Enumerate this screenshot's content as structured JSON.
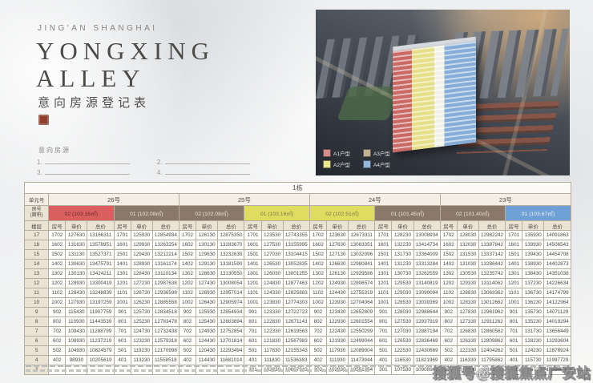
{
  "header": {
    "brand_line": "JING'AN SHANGHAI",
    "title_line1": "YONGXING",
    "title_line2": "ALLEY",
    "subtitle": "意向房源登记表",
    "intent_label": "意向房源",
    "blank_items": [
      "1.",
      "2.",
      "3.",
      "4."
    ]
  },
  "legend": {
    "items": [
      {
        "label": "A1户型",
        "color": "#d98c8c"
      },
      {
        "label": "A3户型",
        "color": "#c2b192"
      },
      {
        "label": "A2户型",
        "color": "#e9e88e"
      },
      {
        "label": "A4户型",
        "color": "#93b7dd"
      }
    ]
  },
  "table": {
    "building_title": "1栋",
    "unit_label": "单元号",
    "type_label_1": "房号",
    "type_label_2": "(面积)",
    "floor_label": "楼层",
    "sub_headers": [
      "房号",
      "单价",
      "总价"
    ],
    "units": [
      {
        "name": "26号",
        "types": [
          {
            "label": "02 (103.16㎡)",
            "bg": "#d9605f",
            "fg": "#63282a"
          },
          {
            "label": "01 (102.08㎡)",
            "bg": "#8a7968",
            "fg": "#ece4d6"
          }
        ]
      },
      {
        "name": "25号",
        "types": [
          {
            "label": "02 (102.08㎡)",
            "bg": "#8a7968",
            "fg": "#ece4d6"
          },
          {
            "label": "01 (103.16㎡)",
            "bg": "#dfdc60",
            "fg": "#7d7850"
          }
        ]
      },
      {
        "name": "24号",
        "types": [
          {
            "label": "02 (102.51㎡)",
            "bg": "#dfdc60",
            "fg": "#7d7850"
          },
          {
            "label": "01 (101.45㎡)",
            "bg": "#8a7968",
            "fg": "#ece4d6"
          }
        ]
      },
      {
        "name": "23号",
        "types": [
          {
            "label": "02 (101.40㎡)",
            "bg": "#8a7968",
            "fg": "#ece4d6"
          },
          {
            "label": "01 (103.67㎡)",
            "bg": "#6fa0d6",
            "fg": "#eef4fa"
          }
        ]
      }
    ],
    "rows": [
      {
        "floor": "17",
        "cells": [
          [
            1702,
            127630,
            13166311
          ],
          [
            1701,
            125930,
            12854934
          ],
          [
            1702,
            126130,
            12875350
          ],
          [
            1701,
            123530,
            12743355
          ],
          [
            1702,
            123630,
            12673311
          ],
          [
            1701,
            128230,
            13008934
          ],
          [
            1702,
            128030,
            12982242
          ],
          [
            1701,
            135930,
            14091863
          ]
        ]
      },
      {
        "floor": "16",
        "cells": [
          [
            1602,
            131630,
            13578951
          ],
          [
            1601,
            129930,
            13263254
          ],
          [
            1602,
            130130,
            13283670
          ],
          [
            1601,
            127530,
            13155995
          ],
          [
            1602,
            127630,
            13083351
          ],
          [
            1601,
            132230,
            13414734
          ],
          [
            1602,
            132030,
            13387842
          ],
          [
            1601,
            139930,
            14506543
          ]
        ]
      },
      {
        "floor": "15",
        "cells": [
          [
            1502,
            131130,
            13527371
          ],
          [
            1501,
            129430,
            13212214
          ],
          [
            1502,
            129630,
            13232630
          ],
          [
            1501,
            127030,
            13104415
          ],
          [
            1502,
            127130,
            13032096
          ],
          [
            1501,
            131730,
            13364009
          ],
          [
            1502,
            131530,
            13337142
          ],
          [
            1501,
            139430,
            14454708
          ]
        ]
      },
      {
        "floor": "14",
        "cells": [
          [
            1402,
            130630,
            13475791
          ],
          [
            1401,
            128930,
            13161174
          ],
          [
            1402,
            129130,
            13181590
          ],
          [
            1401,
            126530,
            13052835
          ],
          [
            1402,
            126630,
            12980841
          ],
          [
            1401,
            131230,
            13313284
          ],
          [
            1402,
            131030,
            13286442
          ],
          [
            1401,
            138930,
            14402873
          ]
        ]
      },
      {
        "floor": "13",
        "cells": [
          [
            1302,
            130130,
            13424211
          ],
          [
            1301,
            128430,
            13110134
          ],
          [
            1302,
            128630,
            13130550
          ],
          [
            1301,
            126030,
            13001255
          ],
          [
            1302,
            126130,
            12929586
          ],
          [
            1301,
            130730,
            13262559
          ],
          [
            1302,
            130530,
            13235742
          ],
          [
            1301,
            138430,
            14351038
          ]
        ]
      },
      {
        "floor": "12",
        "cells": [
          [
            1202,
            128930,
            13300419
          ],
          [
            1201,
            127230,
            12987638
          ],
          [
            1202,
            127430,
            13008054
          ],
          [
            1201,
            124830,
            12877463
          ],
          [
            1202,
            124930,
            12806574
          ],
          [
            1201,
            129530,
            13140819
          ],
          [
            1202,
            129330,
            13114062
          ],
          [
            1201,
            137230,
            14226634
          ]
        ]
      },
      {
        "floor": "11",
        "cells": [
          [
            1102,
            128430,
            13248839
          ],
          [
            1101,
            126730,
            12936598
          ],
          [
            1102,
            126930,
            12957014
          ],
          [
            1101,
            124330,
            12825883
          ],
          [
            1102,
            124430,
            12755319
          ],
          [
            1101,
            129030,
            13090094
          ],
          [
            1102,
            128830,
            13063362
          ],
          [
            1101,
            136730,
            14174799
          ]
        ]
      },
      {
        "floor": "10",
        "cells": [
          [
            1002,
            127930,
            13197259
          ],
          [
            1001,
            126230,
            12885558
          ],
          [
            1002,
            126430,
            12905974
          ],
          [
            1001,
            123830,
            12774303
          ],
          [
            1002,
            123930,
            12704064
          ],
          [
            1001,
            128530,
            13039369
          ],
          [
            1002,
            128330,
            13012662
          ],
          [
            1001,
            136230,
            14122964
          ]
        ]
      },
      {
        "floor": "9",
        "cells": [
          [
            902,
            115430,
            11907759
          ],
          [
            901,
            125730,
            12834518
          ],
          [
            902,
            125930,
            12854934
          ],
          [
            901,
            123330,
            12722723
          ],
          [
            902,
            123430,
            12652809
          ],
          [
            901,
            128030,
            12988644
          ],
          [
            902,
            127830,
            12961962
          ],
          [
            901,
            135730,
            14071129
          ]
        ]
      },
      {
        "floor": "8",
        "cells": [
          [
            802,
            110930,
            11443539
          ],
          [
            801,
            125230,
            12783478
          ],
          [
            802,
            125430,
            12803894
          ],
          [
            801,
            122830,
            12671143
          ],
          [
            802,
            122930,
            12601554
          ],
          [
            801,
            127530,
            12937919
          ],
          [
            802,
            127330,
            12911262
          ],
          [
            801,
            135230,
            14019294
          ]
        ]
      },
      {
        "floor": "7",
        "cells": [
          [
            702,
            109430,
            11288799
          ],
          [
            701,
            124730,
            12732438
          ],
          [
            702,
            124930,
            12752854
          ],
          [
            701,
            122330,
            12619563
          ],
          [
            702,
            122430,
            12550299
          ],
          [
            701,
            127030,
            12887194
          ],
          [
            702,
            126830,
            12860562
          ],
          [
            701,
            131730,
            13656449
          ]
        ]
      },
      {
        "floor": "6",
        "cells": [
          [
            602,
            108930,
            11237219
          ],
          [
            601,
            123230,
            12579318
          ],
          [
            602,
            124430,
            12701814
          ],
          [
            601,
            121830,
            12567983
          ],
          [
            602,
            121930,
            12499044
          ],
          [
            601,
            126530,
            12836469
          ],
          [
            602,
            126330,
            12809862
          ],
          [
            601,
            128230,
            13293604
          ]
        ]
      },
      {
        "floor": "5",
        "cells": [
          [
            502,
            104930,
            10824579
          ],
          [
            501,
            119230,
            12170998
          ],
          [
            502,
            120430,
            12293494
          ],
          [
            501,
            117830,
            12155343
          ],
          [
            502,
            117930,
            12089004
          ],
          [
            501,
            122530,
            12430669
          ],
          [
            502,
            122330,
            12404262
          ],
          [
            501,
            124230,
            12878924
          ]
        ]
      },
      {
        "floor": "4",
        "cells": [
          [
            402,
            98930,
            10205619
          ],
          [
            401,
            113230,
            11558518
          ],
          [
            402,
            114430,
            11681014
          ],
          [
            401,
            111830,
            11536383
          ],
          [
            402,
            111930,
            11473944
          ],
          [
            401,
            116530,
            11821969
          ],
          [
            402,
            116330,
            11795862
          ],
          [
            401,
            115730,
            11997729
          ]
        ]
      },
      {
        "floor": "3",
        "cells": [
          null,
          null,
          null,
          [
            301,
            102830,
            10607943
          ],
          [
            302,
            102930,
            10551354
          ],
          [
            301,
            107530,
            10908919
          ],
          [
            302,
            107330,
            10883262
          ],
          [
            301,
            106730,
            11064699
          ]
        ]
      }
    ]
  },
  "watermark": "搜狐号@搜狐焦点广安站"
}
